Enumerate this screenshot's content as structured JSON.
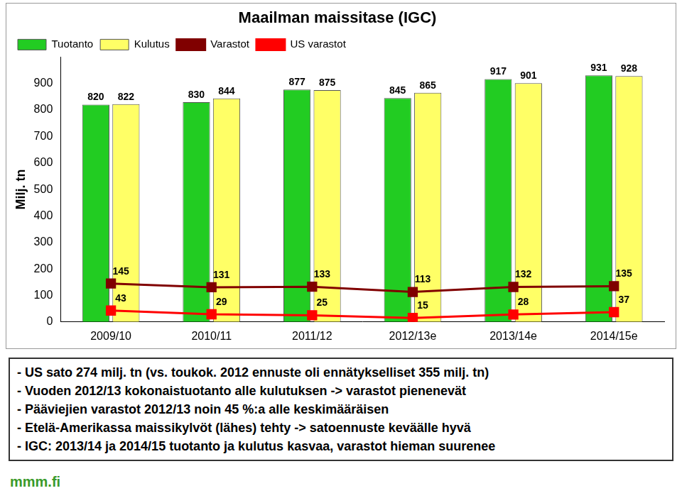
{
  "chart_data": {
    "type": "bar",
    "title": "Maailman maissitase (IGC)",
    "y_label": "Milj. tn",
    "categories": [
      "2009/10",
      "2010/11",
      "2011/12",
      "2012/13e",
      "2013/14e",
      "2014/15e"
    ],
    "series": [
      {
        "name": "Tuotanto",
        "type": "bar",
        "color": "#22cc22",
        "values": [
          820,
          830,
          877,
          845,
          917,
          931
        ]
      },
      {
        "name": "Kulutus",
        "type": "bar",
        "color": "#ffff66",
        "values": [
          822,
          844,
          875,
          865,
          901,
          928
        ]
      },
      {
        "name": "Varastot",
        "type": "line",
        "color": "#800000",
        "marker": "square",
        "values": [
          145,
          131,
          133,
          113,
          132,
          135
        ]
      },
      {
        "name": "US varastot",
        "type": "line",
        "color": "#ff0000",
        "marker": "square",
        "values": [
          43,
          29,
          25,
          15,
          28,
          37
        ]
      }
    ],
    "ylim": [
      0,
      1000
    ],
    "yticks": [
      0,
      100,
      200,
      300,
      400,
      500,
      600,
      700,
      800,
      900
    ],
    "grid": false,
    "legend": "upper left",
    "data_labels": true
  },
  "notes": [
    "- US sato 274 milj. tn (vs. toukok. 2012 ennuste oli ennätykselliset 355 milj. tn)",
    "- Vuoden 2012/13 kokonaistuotanto alle kulutuksen -> varastot pienenevät",
    "- Pääviejien varastot 2012/13 noin 45 %:a alle keskimääräisen",
    "- Etelä-Amerikassa maissikylvöt (lähes) tehty -> satoennuste keväälle hyvä",
    "- IGC: 2013/14 ja 2014/15 tuotanto ja kulutus kasvaa, varastot hieman suurenee"
  ],
  "source": "mmm.fi"
}
